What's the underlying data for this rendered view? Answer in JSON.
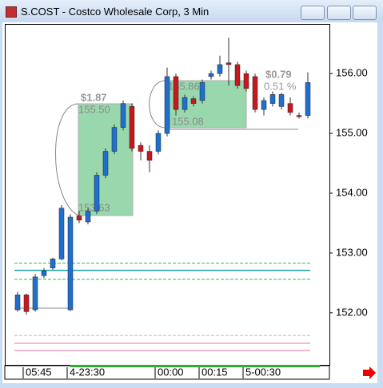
{
  "window": {
    "title": "S.COST - Costco Wholesale Corp, 3 Min"
  },
  "chart_data": {
    "type": "candlestick",
    "categories": [
      null,
      "05:45",
      null,
      null,
      null,
      null,
      "4-23:30",
      null,
      null,
      null,
      null,
      null,
      null,
      null,
      null,
      null,
      "00:00",
      null,
      null,
      null,
      null,
      "00:15",
      null,
      null,
      null,
      null,
      "5-00:30",
      null,
      null,
      null,
      null,
      null,
      null,
      null
    ],
    "open": [
      152.05,
      152.3,
      152.05,
      152.62,
      152.75,
      152.9,
      152.05,
      153.62,
      153.52,
      153.7,
      154.3,
      154.7,
      155.1,
      155.45,
      154.8,
      154.7,
      154.7,
      155.0,
      155.95,
      155.4,
      155.58,
      155.55,
      155.95,
      156.0,
      156.18,
      156.15,
      156.0,
      155.95,
      155.4,
      155.5,
      155.45,
      155.5,
      155.3,
      155.3
    ],
    "high": [
      152.35,
      152.32,
      152.65,
      152.75,
      152.92,
      153.8,
      153.65,
      153.7,
      153.75,
      154.35,
      154.75,
      155.15,
      155.55,
      155.5,
      154.85,
      154.8,
      155.05,
      156.1,
      156.0,
      155.65,
      155.62,
      155.9,
      156.05,
      156.3,
      156.6,
      156.2,
      156.05,
      156.0,
      155.6,
      155.7,
      155.68,
      155.6,
      155.35,
      156.02
    ],
    "low": [
      152.02,
      151.97,
      152.02,
      152.58,
      152.72,
      152.88,
      152.03,
      153.5,
      153.48,
      153.65,
      154.25,
      154.65,
      155.05,
      154.7,
      154.55,
      154.35,
      154.65,
      154.95,
      155.3,
      155.35,
      155.45,
      155.5,
      155.9,
      155.95,
      155.8,
      155.75,
      155.7,
      155.35,
      155.3,
      155.45,
      155.4,
      155.3,
      155.25,
      155.25
    ],
    "close": [
      152.3,
      152.02,
      152.6,
      152.7,
      152.9,
      153.75,
      153.6,
      153.55,
      153.7,
      154.3,
      154.7,
      155.1,
      155.5,
      154.75,
      154.7,
      154.55,
      155.0,
      155.95,
      155.4,
      155.6,
      155.5,
      155.85,
      156.0,
      156.15,
      156.15,
      155.8,
      155.75,
      155.4,
      155.55,
      155.65,
      155.65,
      155.35,
      155.28,
      155.85
    ],
    "up_color": "#1f6fd0",
    "down_color": "#c8171d",
    "ylim": [
      151.13,
      156.83
    ],
    "yticks": [
      {
        "value": 152,
        "label": "152.00"
      },
      {
        "value": 153,
        "label": "153.00"
      },
      {
        "value": 154,
        "label": "154.00"
      },
      {
        "value": 155,
        "label": "155.00"
      },
      {
        "value": 156,
        "label": "156.00"
      }
    ],
    "levels": [
      {
        "value": 152.83,
        "color": "#33b35a",
        "dash": true
      },
      {
        "value": 152.71,
        "color": "#1aa3a3",
        "dash": false
      },
      {
        "value": 152.56,
        "color": "#33b35a",
        "dash": true
      },
      {
        "value": 151.62,
        "color": "#f0a0c8",
        "dash": true
      },
      {
        "value": 151.49,
        "color": "#f0a0c8",
        "dash": false
      },
      {
        "value": 151.37,
        "color": "#f0a0c8",
        "dash": false
      }
    ],
    "annotations": [
      {
        "change": "$1.87",
        "high": "155.50",
        "low": "153.63"
      },
      {
        "change": "$0.79",
        "pct": "0.51 %",
        "high": "155.86",
        "low": "155.08"
      }
    ]
  }
}
